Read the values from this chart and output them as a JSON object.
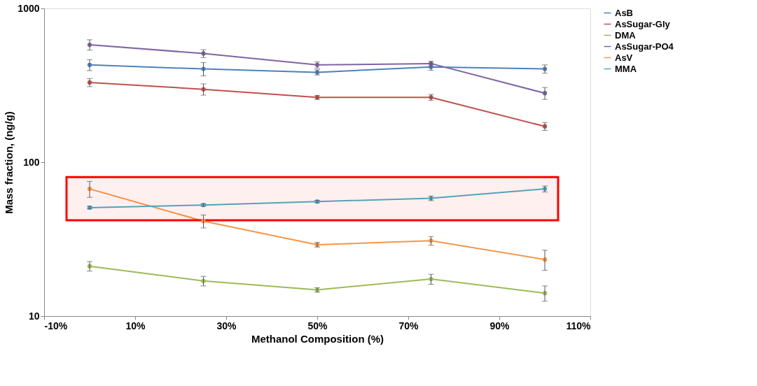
{
  "chart_data": {
    "type": "line",
    "xlabel": "Methanol Composition (%)",
    "ylabel": "Mass fraction, (ng/g)",
    "x": [
      0,
      25,
      50,
      75,
      100
    ],
    "series": [
      {
        "name": "AsB",
        "color": "#4f81bd",
        "values": [
          429,
          404,
          384,
          416,
          404
        ],
        "errors": [
          35,
          40,
          15,
          20,
          25
        ]
      },
      {
        "name": "AsSugar-Gly",
        "color": "#c0504d",
        "values": [
          330,
          298,
          264,
          264,
          171
        ],
        "errors": [
          20,
          25,
          8,
          12,
          10
        ]
      },
      {
        "name": "DMA",
        "color": "#9bbb59",
        "values": [
          21.1,
          16.9,
          14.8,
          17.4,
          14.1
        ],
        "errors": [
          1.5,
          1.2,
          0.5,
          1.3,
          1.6
        ]
      },
      {
        "name": "AsSugar-PO4",
        "color": "#8064a2",
        "values": [
          580,
          509,
          429,
          438,
          281
        ],
        "errors": [
          45,
          30,
          20,
          15,
          25
        ]
      },
      {
        "name": "AsV",
        "color": "#f79646",
        "values": [
          67.1,
          41.4,
          29.1,
          30.9,
          23.3
        ],
        "errors": [
          8,
          4,
          1,
          2,
          3.5
        ]
      },
      {
        "name": "MMA",
        "color": "#4bacc6",
        "values": [
          50.7,
          52.7,
          55.5,
          58.3,
          67.1
        ],
        "errors": [
          1,
          1,
          1,
          2,
          3
        ]
      }
    ],
    "xlim": [
      -10,
      110
    ],
    "xticks": [
      {
        "value": -10,
        "label": "-10%"
      },
      {
        "value": 10,
        "label": "10%"
      },
      {
        "value": 30,
        "label": "30%"
      },
      {
        "value": 50,
        "label": "50%"
      },
      {
        "value": 70,
        "label": "70%"
      },
      {
        "value": 90,
        "label": "90%"
      },
      {
        "value": 110,
        "label": "110%"
      }
    ],
    "ylim": [
      10,
      1000
    ],
    "yticks": [
      10,
      100,
      1000
    ],
    "log": "y",
    "grid": false,
    "legend": "right",
    "marker": "circle",
    "line_style": "solid",
    "bands": [
      {
        "axis": "y",
        "from": 42,
        "to": 80,
        "color": "#ff0000"
      }
    ]
  }
}
